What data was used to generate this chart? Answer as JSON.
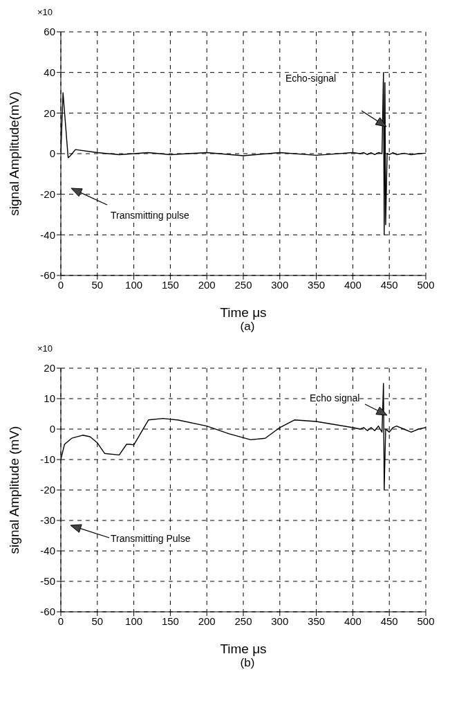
{
  "chart_data": [
    {
      "type": "line",
      "title": "(a)",
      "xlabel": "Time μs",
      "ylabel": "signal Amplitude(mV)",
      "xlim": [
        0,
        500
      ],
      "xticks": [
        0,
        50,
        100,
        150,
        200,
        250,
        300,
        350,
        400,
        450,
        500
      ],
      "ylim": [
        -60,
        60
      ],
      "yticks": [
        -60,
        -40,
        -20,
        0,
        20,
        40,
        60
      ],
      "grid": true,
      "legend": false,
      "marker": "none",
      "line_style": "solid",
      "annotations": [
        "×10",
        "Echo-signal",
        "Transmitting pulse"
      ],
      "series": [
        {
          "color": "#000000",
          "x": [
            0,
            3,
            10,
            13,
            20,
            50,
            80,
            100,
            120,
            150,
            200,
            250,
            300,
            350,
            400,
            410,
            415,
            420,
            425,
            430,
            435,
            440,
            442,
            443,
            444,
            445,
            447,
            450,
            455,
            460,
            470,
            480,
            490,
            500
          ],
          "values": [
            0,
            30,
            -2,
            -1,
            2,
            0.5,
            -0.5,
            0,
            0.5,
            -0.5,
            0.5,
            -1,
            0.5,
            -0.8,
            0.5,
            0,
            0.5,
            -0.5,
            0.5,
            -0.5,
            0.5,
            0,
            40,
            -40,
            35,
            -35,
            0,
            -0.5,
            0.5,
            -0.5,
            0.2,
            -0.5,
            0,
            0.2
          ]
        }
      ]
    },
    {
      "type": "line",
      "title": "(b)",
      "xlabel": "Time μs",
      "ylabel": "signal Amplitude (mV)",
      "xlim": [
        0,
        500
      ],
      "xticks": [
        0,
        50,
        100,
        150,
        200,
        250,
        300,
        350,
        400,
        450,
        500
      ],
      "ylim": [
        -60,
        20
      ],
      "yticks": [
        -60,
        -50,
        -40,
        -30,
        -20,
        -10,
        0,
        10,
        20
      ],
      "grid": true,
      "legend": false,
      "marker": "none",
      "line_style": "solid",
      "annotations": [
        "×10",
        "Echo signal",
        "Transmitting Pulse"
      ],
      "series": [
        {
          "color": "#000000",
          "x": [
            0,
            5,
            15,
            30,
            40,
            50,
            60,
            80,
            90,
            95,
            100,
            120,
            140,
            160,
            200,
            230,
            260,
            280,
            300,
            320,
            350,
            400,
            410,
            415,
            420,
            425,
            430,
            435,
            440,
            442,
            443,
            445,
            450,
            455,
            460,
            470,
            480,
            490,
            500
          ],
          "values": [
            -10,
            -5,
            -3,
            -2,
            -2.5,
            -4.5,
            -8,
            -8.5,
            -5,
            -5,
            -5.2,
            3,
            3.5,
            3,
            1,
            -1.5,
            -3.5,
            -3,
            0.5,
            3,
            2.5,
            0.5,
            0,
            0.5,
            -0.5,
            0.5,
            -0.5,
            1,
            -1,
            15,
            -20,
            0,
            -1,
            0.5,
            1,
            0,
            -1,
            0,
            0.5
          ]
        }
      ]
    }
  ]
}
